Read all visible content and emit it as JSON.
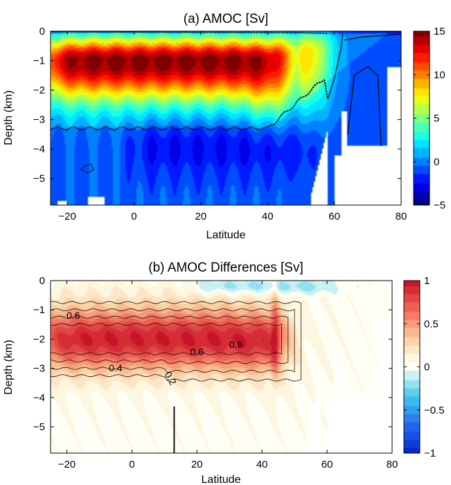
{
  "chart_data": [
    {
      "type": "heatmap",
      "title": "(a) AMOC [Sv]",
      "xlabel": "Latitude",
      "ylabel": "Depth (km)",
      "xlim": [
        -25,
        80
      ],
      "ylim": [
        -5.9,
        0
      ],
      "x_ticks": [
        -20,
        0,
        20,
        40,
        60,
        80
      ],
      "y_ticks": [
        0,
        -1,
        -2,
        -3,
        -4,
        -5
      ],
      "colorbar": {
        "range": [
          -5,
          15
        ],
        "ticks": [
          15,
          10,
          5,
          0,
          -5
        ],
        "colormap": "jet"
      },
      "core": {
        "lat_range": [
          -25,
          48
        ],
        "depth": -1.0,
        "max_value": 15,
        "tail_lat": 57
      },
      "zero_contour_depth": -3.3,
      "bottom_cell": {
        "lat_range": [
          0,
          55
        ],
        "depth": -3.9,
        "min_value": -1.8
      },
      "topography": {
        "deep_basin_floor": -5.9,
        "ridge_lat": 60
      }
    },
    {
      "type": "heatmap",
      "title": "(b) AMOC Differences [Sv]",
      "xlabel": "Latitude",
      "ylabel": "Depth (km)",
      "xlim": [
        -25,
        80
      ],
      "ylim": [
        -5.9,
        0
      ],
      "x_ticks": [
        -20,
        0,
        20,
        40,
        60,
        80
      ],
      "y_ticks": [
        0,
        -1,
        -2,
        -3,
        -4,
        -5
      ],
      "colorbar": {
        "range": [
          -1,
          1
        ],
        "ticks": [
          1,
          0.5,
          0,
          -0.5,
          -1
        ],
        "colormap": "blue-white-red"
      },
      "core": {
        "lat_range": [
          -25,
          45
        ],
        "depth": -2.0,
        "max_value": 0.9
      },
      "contour_labels": [
        {
          "text": "0.6",
          "lat": -18,
          "depth": -1.3
        },
        {
          "text": "0.6",
          "lat": 20,
          "depth": -2.55
        },
        {
          "text": "0.8",
          "lat": 32,
          "depth": -2.3
        },
        {
          "text": "0.4",
          "lat": -5,
          "depth": -3.1
        },
        {
          "text": "0.2",
          "lat": 11,
          "depth": -3.4
        }
      ],
      "surface_negative": {
        "lat_range": [
          20,
          60
        ],
        "depth": -0.2,
        "min_value": -0.25
      }
    }
  ]
}
